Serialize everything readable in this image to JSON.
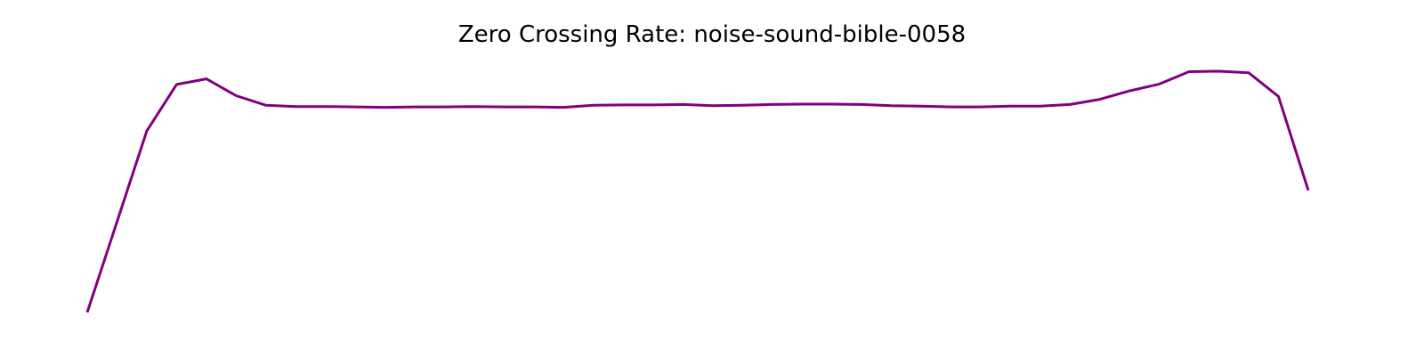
{
  "chart_data": {
    "type": "line",
    "title": "Zero Crossing Rate: noise-sound-bible-0058",
    "xlabel": "",
    "ylabel": "",
    "axes_visible": false,
    "grid": false,
    "line_color": "#800080",
    "series": [
      {
        "values": [
          0.0,
          0.226,
          0.452,
          0.568,
          0.582,
          0.54,
          0.516,
          0.513,
          0.513,
          0.512,
          0.511,
          0.512,
          0.512,
          0.513,
          0.512,
          0.512,
          0.511,
          0.516,
          0.517,
          0.517,
          0.518,
          0.515,
          0.516,
          0.518,
          0.519,
          0.519,
          0.518,
          0.515,
          0.514,
          0.512,
          0.512,
          0.514,
          0.514,
          0.518,
          0.531,
          0.552,
          0.569,
          0.6,
          0.601,
          0.597,
          0.538,
          0.304
        ]
      }
    ]
  }
}
